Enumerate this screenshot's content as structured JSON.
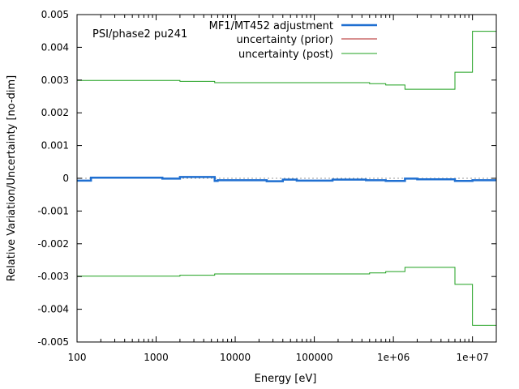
{
  "chart_data": {
    "type": "line",
    "title": "",
    "annotation": "PSI/phase2 pu241",
    "xlabel": "Energy [eV]",
    "ylabel": "Relative Variation/Uncertainty [no-dim]",
    "xscale": "log",
    "xlim": [
      100,
      20000000
    ],
    "ylim": [
      -0.005,
      0.005
    ],
    "x_ticks": [
      {
        "value": 100,
        "label": "100"
      },
      {
        "value": 1000,
        "label": "1000"
      },
      {
        "value": 10000,
        "label": "10000"
      },
      {
        "value": 100000,
        "label": "100000"
      },
      {
        "value": 1000000,
        "label": "1e+06"
      },
      {
        "value": 10000000,
        "label": "1e+07"
      }
    ],
    "y_ticks": [
      {
        "value": 0.005,
        "label": "0.005"
      },
      {
        "value": 0.004,
        "label": "0.004"
      },
      {
        "value": 0.003,
        "label": "0.003"
      },
      {
        "value": 0.002,
        "label": "0.002"
      },
      {
        "value": 0.001,
        "label": "0.001"
      },
      {
        "value": 0,
        "label": "0"
      },
      {
        "value": -0.001,
        "label": "-0.001"
      },
      {
        "value": -0.002,
        "label": "-0.002"
      },
      {
        "value": -0.003,
        "label": "-0.003"
      },
      {
        "value": -0.004,
        "label": "-0.004"
      },
      {
        "value": -0.005,
        "label": "-0.005"
      }
    ],
    "zero_line": true,
    "legend_position": "top-right",
    "series": [
      {
        "name": "MF1/MT452 adjustment",
        "color": "#1f6fd1",
        "style": "step",
        "edges": [
          100,
          150,
          1200,
          2000,
          5500,
          6000,
          25000,
          40000,
          60000,
          170000,
          450000,
          800000,
          1400000,
          2000000,
          6000000,
          10000000,
          20000000
        ],
        "values": [
          -7e-05,
          2e-05,
          -1e-05,
          4e-05,
          -8e-05,
          -6e-05,
          -9e-05,
          -4e-05,
          -7e-05,
          -4e-05,
          -6e-05,
          -8e-05,
          -1e-05,
          -3e-05,
          -8e-05,
          -6e-05
        ]
      },
      {
        "name": "uncertainty (prior)",
        "color": "#b22222",
        "style": "step",
        "edges": [],
        "values": []
      },
      {
        "name": "uncertainty (post)",
        "color": "#1fa01f",
        "style": "step",
        "mirror": true,
        "edges": [
          100,
          2000,
          5500,
          500000,
          800000,
          1400000,
          6000000,
          10000000,
          20000000
        ],
        "values": [
          0.00299,
          0.00296,
          0.00292,
          0.00289,
          0.00285,
          0.00272,
          0.00324,
          0.00449
        ]
      }
    ]
  }
}
